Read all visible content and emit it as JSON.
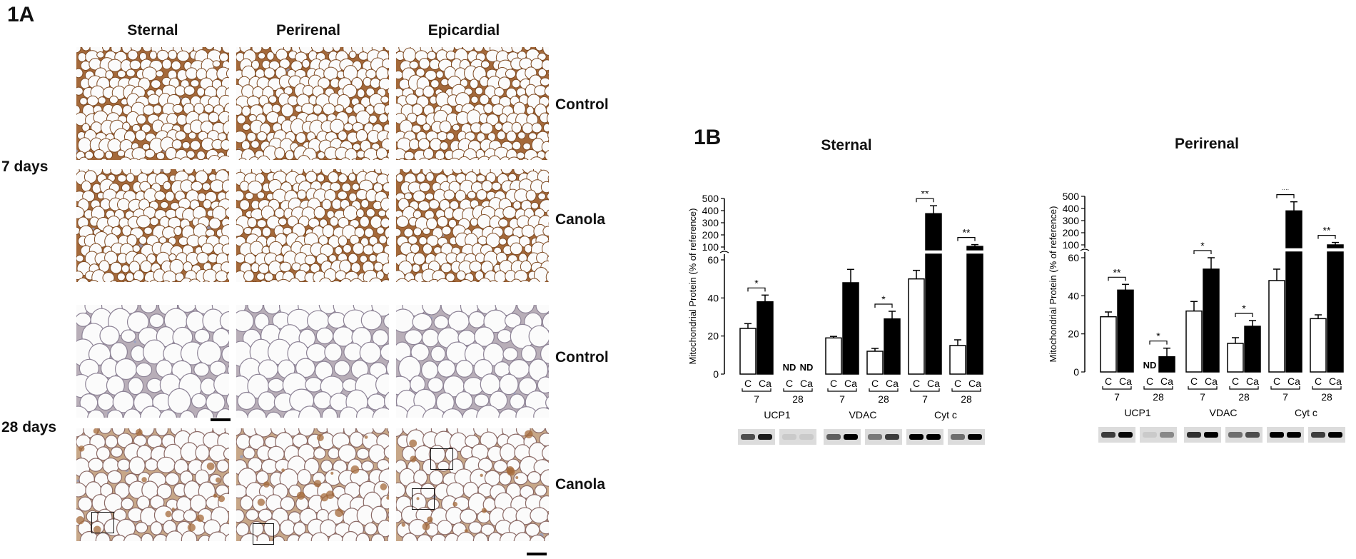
{
  "panel_a": {
    "label": "1A",
    "columns": [
      "Sternal",
      "Perirenal",
      "Epicardial"
    ],
    "time_labels": [
      "7 days",
      "28 days"
    ],
    "rows": [
      {
        "label": "Control",
        "stain": "dense-brown"
      },
      {
        "label": "Canola",
        "stain": "dense-brown"
      },
      {
        "label": "Control",
        "stain": "light"
      },
      {
        "label": "Canola",
        "stain": "sparse-brown"
      }
    ],
    "colors": {
      "stain_brown": "#a4693a",
      "counterstain_blue": "#8f9cc6",
      "tissue_background": "#efe4d8"
    }
  },
  "panel_b": {
    "label": "1B"
  },
  "chart_data": [
    {
      "type": "bar",
      "title": "Sternal",
      "ylabel": "Mitochondrial Protein (% of reference)",
      "broken_axis": {
        "lower_range": [
          0,
          60
        ],
        "upper_range": [
          100,
          500
        ],
        "lower_ticks": [
          0,
          20,
          40,
          60
        ],
        "upper_ticks": [
          100,
          200,
          300,
          400,
          500
        ]
      },
      "series": [
        {
          "name": "C",
          "fill": "#ffffff"
        },
        {
          "name": "Ca",
          "fill": "#000000"
        }
      ],
      "groups": [
        {
          "protein": "UCP1",
          "days": "7",
          "C": 24,
          "C_err": 2.5,
          "Ca": 38,
          "Ca_err": 3.5,
          "sig": "*"
        },
        {
          "protein": "UCP1",
          "days": "28",
          "C": null,
          "Ca": null,
          "C_label": "ND",
          "Ca_label": "ND"
        },
        {
          "protein": "VDAC",
          "days": "7",
          "C": 19,
          "C_err": 0.8,
          "Ca": 48,
          "Ca_err": 7
        },
        {
          "protein": "VDAC",
          "days": "28",
          "C": 12,
          "C_err": 1.5,
          "Ca": 29,
          "Ca_err": 4,
          "sig": "*"
        },
        {
          "protein": "Cyt c",
          "days": "7",
          "C": 50,
          "C_err": 4.5,
          "Ca": 375,
          "Ca_err": 65,
          "sig": "**"
        },
        {
          "protein": "Cyt c",
          "days": "28",
          "C": 15,
          "C_err": 3,
          "Ca": 105,
          "Ca_err": 15,
          "sig": "**"
        }
      ],
      "tick_labels": [
        "C",
        "Ca"
      ],
      "proteins": [
        "UCP1",
        "VDAC",
        "Cyt c"
      ]
    },
    {
      "type": "bar",
      "title": "Perirenal",
      "ylabel": "Mitochondrial Protein (% of reference)",
      "broken_axis": {
        "lower_range": [
          0,
          60
        ],
        "upper_range": [
          100,
          500
        ],
        "lower_ticks": [
          0,
          20,
          40,
          60
        ],
        "upper_ticks": [
          100,
          200,
          300,
          400,
          500
        ]
      },
      "series": [
        {
          "name": "C",
          "fill": "#ffffff"
        },
        {
          "name": "Ca",
          "fill": "#000000"
        }
      ],
      "groups": [
        {
          "protein": "UCP1",
          "days": "7",
          "C": 29,
          "C_err": 2.5,
          "Ca": 43,
          "Ca_err": 3,
          "sig": "**"
        },
        {
          "protein": "UCP1",
          "days": "28",
          "C": null,
          "C_label": "ND",
          "Ca": 8,
          "Ca_err": 4.5,
          "sig": "*"
        },
        {
          "protein": "VDAC",
          "days": "7",
          "C": 32,
          "C_err": 5,
          "Ca": 54,
          "Ca_err": 6,
          "sig": "*"
        },
        {
          "protein": "VDAC",
          "days": "28",
          "C": 15,
          "C_err": 3,
          "Ca": 24,
          "Ca_err": 3,
          "sig": "*"
        },
        {
          "protein": "Cyt c",
          "days": "7",
          "C": 48,
          "C_err": 6,
          "Ca": 380,
          "Ca_err": 75,
          "sig": "**"
        },
        {
          "protein": "Cyt c",
          "days": "28",
          "C": 28,
          "C_err": 2,
          "Ca": 100,
          "Ca_err": 20,
          "sig": "**"
        }
      ],
      "tick_labels": [
        "C",
        "Ca"
      ],
      "proteins": [
        "UCP1",
        "VDAC",
        "Cyt c"
      ]
    }
  ]
}
